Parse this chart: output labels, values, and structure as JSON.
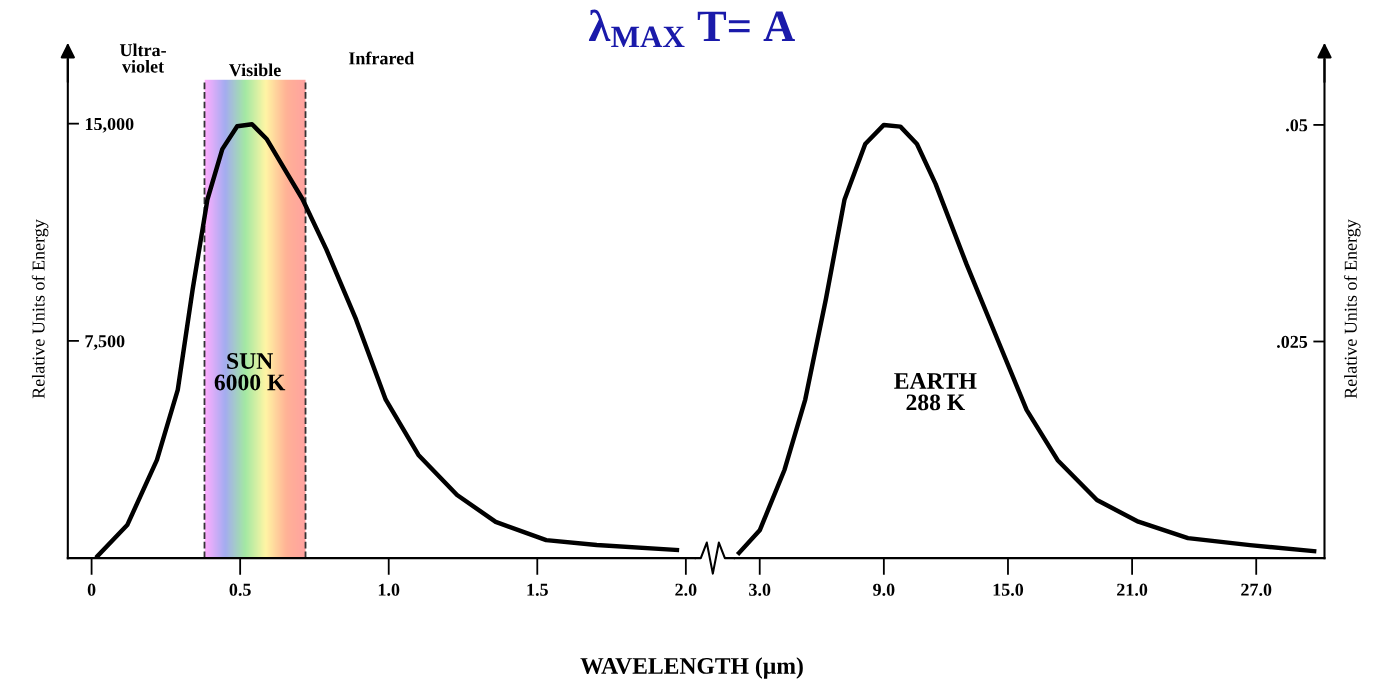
{
  "chart_data": [
    {
      "type": "line",
      "title": "λ$_{MAX}$ T= A",
      "xlabel": "WAVELENGTH (µm)",
      "ylabel": "Relative Units of Energy",
      "x": [
        0.02,
        0.12,
        0.22,
        0.29,
        0.34,
        0.39,
        0.44,
        0.49,
        0.54,
        0.59,
        0.66,
        0.71,
        0.79,
        0.89,
        0.99,
        1.1,
        1.23,
        1.36,
        1.53,
        1.7,
        1.97
      ],
      "series": [
        {
          "color": "#000000",
          "values": [
            70,
            1140,
            3390,
            5810,
            9270,
            12390,
            14120,
            14910,
            14980,
            14460,
            13250,
            12390,
            10660,
            8240,
            5470,
            3560,
            2180,
            1250,
            620,
            450,
            280
          ]
        }
      ],
      "xlim": [
        -0.08,
        2.03
      ],
      "xticks": [
        0,
        0.5,
        {
          "value": 1.0,
          "label": "1.0"
        },
        1.5,
        {
          "value": 2.0,
          "label": "2.0"
        }
      ],
      "ylim": [
        0,
        17200
      ],
      "yticks": [
        {
          "value": 7500,
          "label": "7,500"
        },
        {
          "value": 15000,
          "label": "15,000"
        }
      ],
      "bands": [
        {
          "axis": "x",
          "from": 0.38,
          "to": 0.72,
          "label": "Visible"
        }
      ],
      "ref_lines": [
        {
          "axis": "x",
          "value": 0.38,
          "color": "#333333",
          "line_style": "dashed"
        },
        {
          "axis": "x",
          "value": 0.72,
          "color": "#333333",
          "line_style": "dashed"
        }
      ],
      "annotations": [
        "Ultra-\nviolet",
        "Infrared",
        "SUN\n6000 K"
      ],
      "grid": false,
      "legend": false,
      "line_style": "solid",
      "marker": "none"
    },
    {
      "type": "line",
      "ylabel": "Relative Units of Energy",
      "x": [
        2.0,
        3.0,
        4.2,
        5.2,
        6.2,
        7.1,
        8.1,
        9.0,
        9.8,
        10.6,
        11.5,
        13.0,
        14.5,
        15.9,
        17.4,
        19.3,
        21.3,
        23.7,
        26.7,
        29.8
      ],
      "series": [
        {
          "color": "#000000",
          "values": [
            0.0006,
            0.0032,
            0.0102,
            0.0183,
            0.0299,
            0.0414,
            0.0478,
            0.05,
            0.0498,
            0.0478,
            0.0432,
            0.0339,
            0.0252,
            0.0171,
            0.0113,
            0.0067,
            0.0042,
            0.0023,
            0.0015,
            0.0008
          ]
        }
      ],
      "xlim": [
        1.8,
        30.3
      ],
      "xticks": [
        {
          "value": 3,
          "label": "3.0"
        },
        {
          "value": 9,
          "label": "9.0"
        },
        {
          "value": 15,
          "label": "15.0"
        },
        {
          "value": 21,
          "label": "21.0"
        },
        {
          "value": 27,
          "label": "27.0"
        }
      ],
      "ylim": [
        0,
        0.0575
      ],
      "yticks": [
        {
          "value": 0.025,
          "label": ".025"
        },
        {
          "value": 0.05,
          "label": ".05"
        }
      ],
      "annotations": [
        "EARTH\n288 K"
      ],
      "grid": false,
      "legend": false,
      "line_style": "solid",
      "marker": "none"
    }
  ]
}
